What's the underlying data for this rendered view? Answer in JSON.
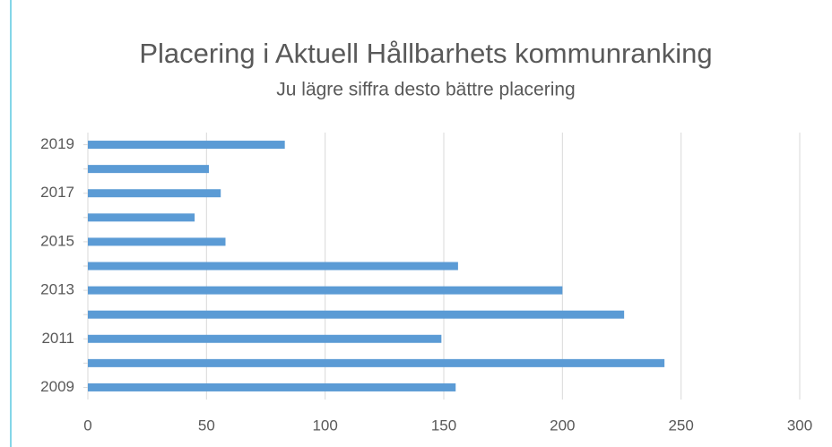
{
  "chart_data": {
    "type": "barh",
    "title": "Placering i Aktuell Hållbarhets kommunranking",
    "subtitle": "Ju lägre siffra desto bättre placering",
    "categories": [
      "2019",
      null,
      "2017",
      null,
      "2015",
      null,
      "2013",
      null,
      "2011",
      null,
      "2009"
    ],
    "values": [
      83,
      51,
      56,
      45,
      58,
      156,
      200,
      226,
      149,
      243,
      155
    ],
    "color": "#5b9bd5",
    "xlim": [
      0,
      300
    ],
    "xticks": [
      0,
      50,
      100,
      150,
      200,
      250,
      300
    ],
    "grid": true
  }
}
